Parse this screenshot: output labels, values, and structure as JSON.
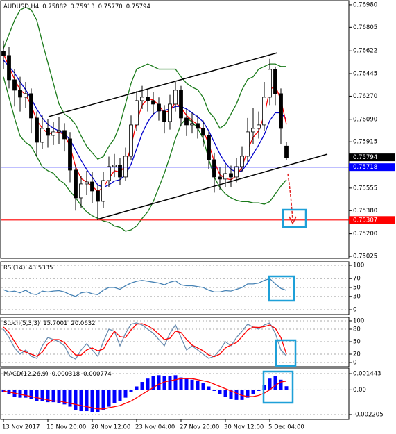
{
  "chart_data": [
    {
      "type": "candlestick",
      "title": "AUDUSD,H4",
      "header": [
        "0.75882",
        "0.75913",
        "0.75770",
        "0.75794"
      ],
      "categories": [
        "13 Nov 2017",
        null,
        null,
        null,
        null,
        null,
        null,
        null,
        "15 Nov 20:00",
        null,
        null,
        null,
        null,
        null,
        null,
        null,
        "20 Nov 12:00",
        null,
        null,
        null,
        null,
        null,
        null,
        null,
        "23 Nov 04:00",
        null,
        null,
        null,
        null,
        null,
        null,
        null,
        "27 Nov 20:00",
        null,
        null,
        null,
        null,
        null,
        null,
        null,
        "30 Nov 12:00",
        null,
        null,
        null,
        null,
        null,
        null,
        null,
        "5 Dec 04:00",
        null,
        null,
        null
      ],
      "open": [
        0.7662,
        0.76586,
        0.76397,
        0.76316,
        0.76262,
        0.76289,
        0.761,
        0.75911,
        0.76019,
        0.75965,
        0.75992,
        0.76003,
        0.75938,
        0.75695,
        0.75479,
        0.75587,
        0.75603,
        0.75533,
        0.75452,
        0.75614,
        0.75722,
        0.75733,
        0.75641,
        0.75803,
        0.76046,
        0.76235,
        0.76262,
        0.76235,
        0.76208,
        0.76154,
        0.76073,
        0.76208,
        0.76316,
        0.761,
        0.76046,
        0.76057,
        0.76019,
        0.75965,
        0.75776,
        0.75641,
        0.75625,
        0.75668,
        0.75641,
        0.75722,
        0.75803,
        0.75992,
        0.76019,
        0.76046,
        0.76262,
        0.76478,
        0.76289,
        0.75882
      ],
      "high": [
        0.767,
        0.7665,
        0.7648,
        0.7642,
        0.7638,
        0.7633,
        0.7615,
        0.7612,
        0.7609,
        0.7607,
        0.7611,
        0.7606,
        0.7599,
        0.7574,
        0.7565,
        0.7569,
        0.7568,
        0.7558,
        0.7568,
        0.758,
        0.7582,
        0.7579,
        0.7587,
        0.7612,
        0.7631,
        0.7635,
        0.7633,
        0.763,
        0.7626,
        0.762,
        0.7628,
        0.7638,
        0.7635,
        0.7617,
        0.7614,
        0.7612,
        0.7608,
        0.76,
        0.7583,
        0.7572,
        0.7574,
        0.7573,
        0.7579,
        0.7588,
        0.761,
        0.7618,
        0.7615,
        0.7638,
        0.7656,
        0.765,
        0.7633,
        0.75913
      ],
      "low": [
        0.7648,
        0.7633,
        0.7619,
        0.7615,
        0.7618,
        0.7598,
        0.758,
        0.7586,
        0.7587,
        0.7589,
        0.759,
        0.7584,
        0.756,
        0.7538,
        0.754,
        0.755,
        0.7544,
        0.7532,
        0.754,
        0.7556,
        0.7564,
        0.7558,
        0.7561,
        0.7577,
        0.76,
        0.7617,
        0.7615,
        0.7612,
        0.7608,
        0.7598,
        0.7601,
        0.7615,
        0.7604,
        0.7596,
        0.7598,
        0.7594,
        0.7588,
        0.757,
        0.7552,
        0.7554,
        0.7556,
        0.7556,
        0.756,
        0.7568,
        0.7576,
        0.759,
        0.7594,
        0.76,
        0.762,
        0.762,
        0.759,
        0.7577
      ],
      "close": [
        0.76586,
        0.76397,
        0.76316,
        0.76262,
        0.76289,
        0.761,
        0.75911,
        0.76019,
        0.75965,
        0.75992,
        0.76003,
        0.75938,
        0.75695,
        0.75479,
        0.75587,
        0.75603,
        0.75533,
        0.75452,
        0.75614,
        0.75722,
        0.75733,
        0.75641,
        0.75803,
        0.76046,
        0.76235,
        0.76262,
        0.76235,
        0.76208,
        0.76154,
        0.76073,
        0.76208,
        0.76316,
        0.761,
        0.76046,
        0.76057,
        0.76019,
        0.75965,
        0.75776,
        0.75641,
        0.75625,
        0.75668,
        0.75641,
        0.75722,
        0.75803,
        0.75992,
        0.76019,
        0.76046,
        0.76262,
        0.76478,
        0.76289,
        0.76019,
        0.75794
      ],
      "series": [
        {
          "color": "#1a7a1a",
          "values": [
            0.7664,
            0.7675,
            0.7686,
            0.7694,
            0.7696,
            0.7694,
            0.7686,
            0.7669,
            0.7653,
            0.7637,
            0.7621,
            0.7613,
            0.761,
            0.7605,
            0.7596,
            0.7588,
            0.7583,
            0.7578,
            0.758,
            0.7588,
            0.7594,
            0.7605,
            0.7621,
            0.7637,
            0.7648,
            0.765,
            0.7652,
            0.765,
            0.7648,
            0.7648,
            0.7648,
            0.7648,
            0.7642,
            0.7637,
            0.7634,
            0.7632,
            0.7626,
            0.7615,
            0.761,
            0.7602,
            0.7605,
            0.7613,
            0.7621,
            0.7632,
            0.764,
            0.7642,
            0.7648,
            0.765,
            0.7652,
            0.7652,
            0.765,
            0.765
          ]
        },
        {
          "color": "#1a7a1a",
          "values": [
            0.7642,
            0.7626,
            0.761,
            0.7596,
            0.7591,
            0.7588,
            0.758,
            0.7572,
            0.7569,
            0.7567,
            0.7562,
            0.7559,
            0.7553,
            0.7548,
            0.7542,
            0.7537,
            0.7534,
            0.7532,
            0.753,
            0.7529,
            0.7526,
            0.7525,
            0.7522,
            0.7523,
            0.7526,
            0.7532,
            0.7537,
            0.7545,
            0.7556,
            0.7567,
            0.758,
            0.7594,
            0.7605,
            0.761,
            0.7607,
            0.7602,
            0.7594,
            0.7578,
            0.7564,
            0.7556,
            0.7551,
            0.7548,
            0.7546,
            0.7545,
            0.7545,
            0.7544,
            0.7544,
            0.7543,
            0.7545,
            0.7551,
            0.7557,
            0.7562
          ]
        },
        {
          "color": "#0000cc",
          "values": [
            0.7655,
            0.765,
            0.7645,
            0.7638,
            0.7632,
            0.7625,
            0.7617,
            0.761,
            0.7605,
            0.7602,
            0.76,
            0.7598,
            0.7593,
            0.7585,
            0.7577,
            0.757,
            0.7564,
            0.7558,
            0.7556,
            0.7558,
            0.7561,
            0.7562,
            0.7566,
            0.7574,
            0.7586,
            0.7598,
            0.7607,
            0.7613,
            0.7616,
            0.7616,
            0.7617,
            0.7619,
            0.7619,
            0.7617,
            0.7614,
            0.7611,
            0.7607,
            0.76,
            0.7591,
            0.7582,
            0.7575,
            0.757,
            0.7568,
            0.7569,
            0.7575,
            0.7582,
            0.7589,
            0.7597,
            0.7608,
            0.7614,
            0.7614,
            0.7609
          ]
        },
        {
          "color": "#ff0000",
          "values": [
            0.766,
            0.765,
            0.764,
            0.7632,
            0.7628,
            0.762,
            0.7608,
            0.7602,
            0.7598,
            0.7598,
            0.7599,
            0.7597,
            0.7588,
            0.7572,
            0.7563,
            0.756,
            0.7557,
            0.7553,
            0.7556,
            0.7563,
            0.7569,
            0.7568,
            0.7573,
            0.7588,
            0.7607,
            0.762,
            0.7625,
            0.7624,
            0.762,
            0.7614,
            0.7616,
            0.7622,
            0.7618,
            0.7612,
            0.7608,
            0.7605,
            0.76,
            0.759,
            0.7576,
            0.7566,
            0.7563,
            0.7562,
            0.7565,
            0.7572,
            0.7585,
            0.7595,
            0.76,
            0.7612,
            0.7632,
            0.7635,
            0.7624,
            0.7605
          ]
        }
      ],
      "hlines": [
        {
          "value": 0.75718,
          "color": "#0000ff"
        },
        {
          "value": 0.75307,
          "color": "#ff0000"
        }
      ],
      "ylim": [
        0.75009,
        0.77012
      ],
      "yticks": [
        {
          "value": 0.7698,
          "label": "0.76980"
        },
        0.76805,
        0.76622,
        0.76445,
        {
          "value": 0.7627,
          "label": "0.76270"
        },
        {
          "value": 0.7609,
          "label": "0.76090"
        },
        0.75915,
        0.75555,
        {
          "value": 0.7538,
          "label": "0.75380"
        },
        {
          "value": 0.752,
          "label": "0.75200"
        },
        0.75025
      ],
      "grid": false
    },
    {
      "type": "line",
      "title": "RSI(14)",
      "header": [
        "43.5335"
      ],
      "series": [
        {
          "color": "#4682b4",
          "values": [
            45,
            40,
            42,
            38,
            44,
            36,
            34,
            42,
            40,
            42,
            43,
            40,
            34,
            30,
            38,
            40,
            36,
            34,
            44,
            50,
            50,
            46,
            54,
            60,
            64,
            66,
            64,
            62,
            60,
            56,
            62,
            65,
            56,
            54,
            54,
            52,
            50,
            44,
            40,
            40,
            43,
            42,
            46,
            50,
            58,
            58,
            60,
            66,
            70,
            58,
            48,
            43.5335
          ]
        }
      ],
      "ylim": [
        -10.9,
        107.8
      ],
      "yticks": [
        100,
        70,
        50,
        30,
        0
      ],
      "grid": true
    },
    {
      "type": "line",
      "title": "Stoch(5,3,3)",
      "header": [
        "15.7001",
        "20.0632"
      ],
      "series": [
        {
          "color": "#6a8caf",
          "values": [
            80,
            60,
            35,
            20,
            30,
            15,
            10,
            40,
            60,
            55,
            50,
            40,
            15,
            8,
            30,
            45,
            30,
            15,
            50,
            80,
            75,
            40,
            70,
            92,
            95,
            90,
            80,
            70,
            55,
            40,
            70,
            90,
            60,
            30,
            40,
            30,
            20,
            10,
            15,
            30,
            50,
            40,
            60,
            75,
            92,
            85,
            80,
            90,
            95,
            70,
            30,
            15.7001
          ]
        },
        {
          "color": "#ff0000",
          "values": [
            85,
            72,
            50,
            30,
            25,
            20,
            15,
            25,
            45,
            55,
            55,
            48,
            32,
            18,
            18,
            30,
            35,
            28,
            32,
            55,
            75,
            62,
            60,
            78,
            92,
            93,
            88,
            80,
            68,
            55,
            58,
            75,
            72,
            55,
            42,
            35,
            28,
            18,
            14,
            20,
            35,
            42,
            48,
            62,
            78,
            85,
            84,
            86,
            90,
            82,
            60,
            20.0632
          ]
        }
      ],
      "ylim": [
        -10,
        108.3
      ],
      "yticks": [
        100,
        80,
        50,
        20,
        0
      ],
      "grid": true
    },
    {
      "type": "bar",
      "title": "MACD(12,26,9)",
      "header": [
        "0.000318",
        "0.000774"
      ],
      "series": [
        {
          "style": "bar",
          "color": "#0000ff",
          "values": [
            -0.0002,
            -0.0004,
            -0.0006,
            -0.0007,
            -0.0007,
            -0.0008,
            -0.001,
            -0.001,
            -0.0011,
            -0.0011,
            -0.0012,
            -0.0013,
            -0.0015,
            -0.0018,
            -0.0019,
            -0.0019,
            -0.002,
            -0.002,
            -0.0018,
            -0.0015,
            -0.0012,
            -0.001,
            -0.0007,
            -0.0002,
            0.0003,
            0.0007,
            0.001,
            0.0012,
            0.0013,
            0.0012,
            0.0012,
            0.0013,
            0.0011,
            0.001,
            0.0009,
            0.0008,
            0.0006,
            0.0003,
            -0.0001,
            -0.0004,
            -0.0006,
            -0.0008,
            -0.0009,
            -0.0009,
            -0.0007,
            -0.0004,
            -0.0001,
            0.0004,
            0.001,
            0.0012,
            0.0009,
            0.000318
          ]
        },
        {
          "style": "line",
          "color": "#ff0000",
          "values": [
            -0.0001,
            -0.0002,
            -0.0003,
            -0.0004,
            -0.0005,
            -0.0006,
            -0.0007,
            -0.0008,
            -0.0009,
            -0.001,
            -0.001,
            -0.0011,
            -0.0012,
            -0.0013,
            -0.0014,
            -0.0015,
            -0.0016,
            -0.0017,
            -0.0017,
            -0.0016,
            -0.0015,
            -0.0014,
            -0.0012,
            -0.001,
            -0.0007,
            -0.0004,
            -0.0001,
            0.0002,
            0.0005,
            0.0007,
            0.0008,
            0.0009,
            0.001,
            0.001,
            0.001,
            0.0009,
            0.0008,
            0.0007,
            0.0005,
            0.0003,
            0.0001,
            -0.0001,
            -0.0003,
            -0.0005,
            -0.0006,
            -0.0006,
            -0.0005,
            -0.0003,
            0,
            0.0004,
            0.0007,
            0.000774
          ]
        }
      ],
      "ylim": [
        -0.00264,
        0.00194
      ],
      "yticks": [
        0.001443,
        {
          "value": 0,
          "label": "0.00"
        },
        -0.002205
      ],
      "grid": true
    }
  ]
}
